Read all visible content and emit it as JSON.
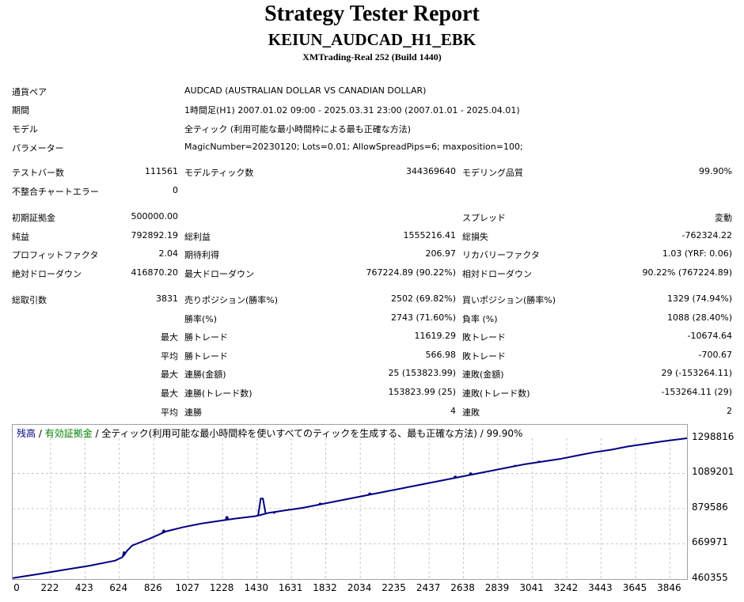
{
  "header": {
    "title": "Strategy Tester Report",
    "subtitle": "KEIUN_AUDCAD_H1_EBK",
    "server": "XMTrading-Real 252 (Build 1440)"
  },
  "info": {
    "symbol_label": "通貨ペア",
    "symbol_value": "AUDCAD (AUSTRALIAN DOLLAR VS CANADIAN DOLLAR)",
    "period_label": "期間",
    "period_value": "1時間足(H1) 2007.01.02 09:00 - 2025.03.31 23:00 (2007.01.01 - 2025.04.01)",
    "model_label": "モデル",
    "model_value": "全ティック (利用可能な最小時間枠による最も正確な方法)",
    "params_label": "パラメーター",
    "params_value": "MagicNumber=20230120; Lots=0.01; AllowSpreadPips=6; maxposition=100;"
  },
  "bars": {
    "bars_label": "テストバー数",
    "bars_value": "111561",
    "ticks_label": "モデルティック数",
    "ticks_value": "344369640",
    "quality_label": "モデリング品質",
    "quality_value": "99.90%",
    "errors_label": "不整合チャートエラー",
    "errors_value": "0"
  },
  "results": {
    "deposit_label": "初期証拠金",
    "deposit_value": "500000.00",
    "spread_label": "スプレッド",
    "spread_value": "変動",
    "net_label": "純益",
    "net_value": "792892.19",
    "gross_profit_label": "総利益",
    "gross_profit_value": "1555216.41",
    "gross_loss_label": "総損失",
    "gross_loss_value": "-762324.22",
    "pf_label": "プロフィットファクタ",
    "pf_value": "2.04",
    "expected_label": "期待利得",
    "expected_value": "206.97",
    "recovery_label": "リカバリーファクタ",
    "recovery_value": "1.03 (YRF: 0.06)",
    "abs_dd_label": "絶対ドローダウン",
    "abs_dd_value": "416870.20",
    "max_dd_label": "最大ドローダウン",
    "max_dd_value": "767224.89 (90.22%)",
    "rel_dd_label": "相対ドローダウン",
    "rel_dd_value": "90.22% (767224.89)"
  },
  "trades": {
    "total_label": "総取引数",
    "total_value": "3831",
    "short_label": "売りポジション(勝率%)",
    "short_value": "2502 (69.82%)",
    "long_label": "買いポジション(勝率%)",
    "long_value": "1329 (74.94%)",
    "winpct_label": "勝率(%)",
    "winpct_value": "2743 (71.60%)",
    "losspct_label": "負率 (%)",
    "losspct_value": "1088 (28.40%)",
    "max_prefix": "最大",
    "avg_prefix": "平均",
    "largest_win_label": "勝トレード",
    "largest_win_value": "11619.29",
    "largest_loss_label": "敗トレード",
    "largest_loss_value": "-10674.64",
    "avg_win_label": "勝トレード",
    "avg_win_value": "566.98",
    "avg_loss_label": "敗トレード",
    "avg_loss_value": "-700.67",
    "max_consec_wins_label": "連勝(金額)",
    "max_consec_wins_value": "25 (153823.99)",
    "max_consec_losses_label": "連敗(金額)",
    "max_consec_losses_value": "29 (-153264.11)",
    "max_consec_profit_label": "連勝(トレード数)",
    "max_consec_profit_value": "153823.99 (25)",
    "max_consec_loss_label": "連敗(トレード数)",
    "max_consec_loss_value": "-153264.11 (29)",
    "avg_consec_wins_label": "連勝",
    "avg_consec_wins_value": "4",
    "avg_consec_losses_label": "連敗",
    "avg_consec_losses_value": "2"
  },
  "legend": {
    "balance": "残高",
    "sep1": " / ",
    "equity": "有効証拠金",
    "sep2": " / ",
    "model": "全ティック(利用可能な最小時間枠を使いすべてのティックを生成する、最も正確な方法) / 99.90%"
  },
  "chart_data": {
    "type": "line",
    "xlim": [
      0,
      3946
    ],
    "ylim": [
      460355,
      1298816
    ],
    "x_ticks": [
      "0",
      "222",
      "423",
      "624",
      "826",
      "1027",
      "1228",
      "1430",
      "1631",
      "1832",
      "2034",
      "2235",
      "2437",
      "2638",
      "2839",
      "3041",
      "3242",
      "3443",
      "3645",
      "3846"
    ],
    "y_ticks": [
      "1298816",
      "1089201",
      "879586",
      "669971",
      "460355"
    ],
    "grid": true,
    "colors": {
      "balance": "#000080",
      "equity": "#008000"
    },
    "series": [
      {
        "name": "残高",
        "x": [
          0,
          150,
          300,
          450,
          600,
          640,
          650,
          660,
          670,
          680,
          690,
          700,
          800,
          900,
          1000,
          1100,
          1200,
          1300,
          1420,
          1450,
          1480,
          1500,
          1600,
          1700,
          1800,
          1900,
          2000,
          2100,
          2200,
          2300,
          2400,
          2500,
          2600,
          2700,
          2800,
          2900,
          3000,
          3100,
          3200,
          3300,
          3400,
          3500,
          3600,
          3700,
          3800,
          3946
        ],
        "y": [
          466000,
          490000,
          515000,
          540000,
          570000,
          590000,
          600000,
          615000,
          630000,
          640000,
          650000,
          660000,
          700000,
          745000,
          770000,
          790000,
          805000,
          820000,
          835000,
          842000,
          850000,
          855000,
          870000,
          885000,
          905000,
          925000,
          945000,
          965000,
          985000,
          1005000,
          1025000,
          1045000,
          1065000,
          1085000,
          1105000,
          1125000,
          1145000,
          1160000,
          1175000,
          1195000,
          1215000,
          1230000,
          1250000,
          1265000,
          1280000,
          1298816
        ]
      }
    ],
    "equity_spikes": [
      {
        "x": 652,
        "y": 620000
      },
      {
        "x": 884,
        "y": 750000
      },
      {
        "x": 1254,
        "y": 830000
      },
      {
        "x": 1458,
        "y": 940000
      },
      {
        "x": 1530,
        "y": 855000
      },
      {
        "x": 1800,
        "y": 910000
      },
      {
        "x": 2090,
        "y": 970000
      },
      {
        "x": 2590,
        "y": 1072000
      },
      {
        "x": 2680,
        "y": 1090000
      },
      {
        "x": 2940,
        "y": 1135000
      },
      {
        "x": 3080,
        "y": 1160000
      }
    ]
  }
}
